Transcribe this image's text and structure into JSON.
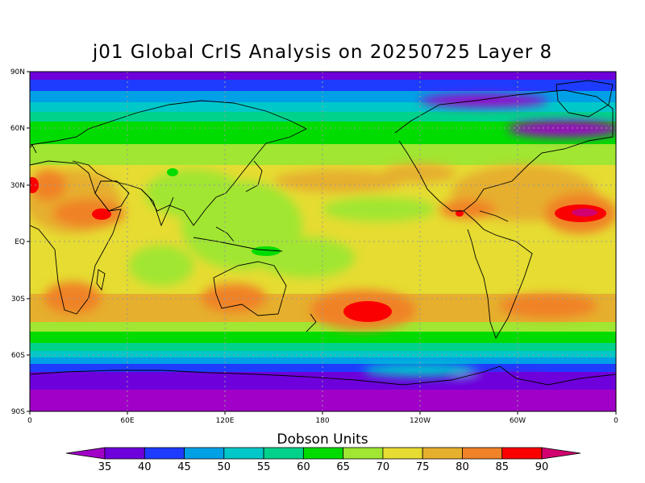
{
  "title": "j01 Global CrIS Analysis on 20250725 Layer 8",
  "lat_ticks": [
    "90N",
    "60N",
    "30N",
    "EQ",
    "30S",
    "60S",
    "90S"
  ],
  "lon_ticks": [
    "0",
    "60E",
    "120E",
    "180",
    "120W",
    "60W",
    "0"
  ],
  "colorbar": {
    "title": "Dobson Units",
    "labels": [
      "35",
      "40",
      "45",
      "50",
      "55",
      "60",
      "65",
      "70",
      "75",
      "80",
      "85",
      "90"
    ],
    "colors": [
      "#a000c8",
      "#6e00dc",
      "#1e3cff",
      "#00a0e6",
      "#00c8c8",
      "#00d28c",
      "#00dc00",
      "#a0e632",
      "#e6dc32",
      "#e6af2d",
      "#f08228",
      "#fa0000",
      "#d2006e"
    ]
  },
  "chart_data": {
    "type": "heatmap",
    "title": "j01 Global CrIS Analysis on 20250725 Layer 8",
    "units": "Dobson Units",
    "x_range": [
      "0",
      "0"
    ],
    "y_range": [
      "90S",
      "90N"
    ],
    "levels": [
      35,
      40,
      45,
      50,
      55,
      60,
      65,
      70,
      75,
      80,
      85,
      90
    ],
    "grid": true
  }
}
